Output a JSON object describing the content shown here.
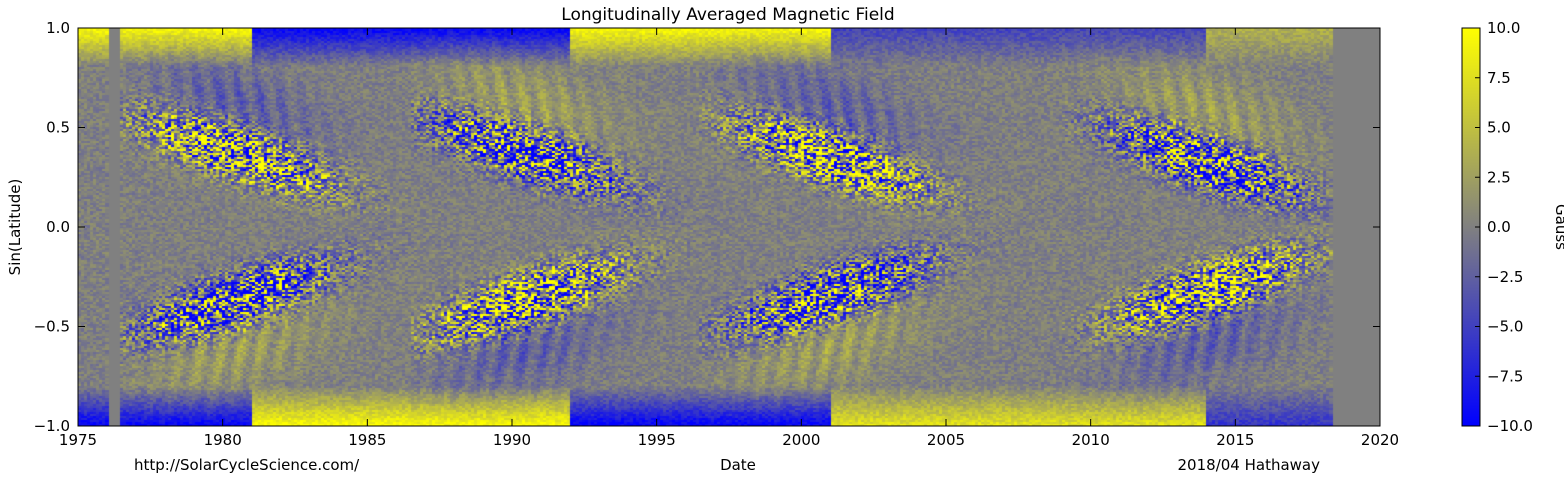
{
  "chart_data": {
    "type": "heatmap",
    "title": "Longitudinally Averaged Magnetic Field",
    "xlabel": "Date",
    "ylabel": "Sin(Latitude)",
    "xlim": [
      1975,
      2020
    ],
    "ylim": [
      -1.0,
      1.0
    ],
    "x_ticks": [
      "1975",
      "1980",
      "1985",
      "1990",
      "1995",
      "2000",
      "2005",
      "2010",
      "2015",
      "2020"
    ],
    "y_ticks": [
      "−1.0",
      "−0.5",
      "0.0",
      "0.5",
      "1.0"
    ],
    "colorbar": {
      "label": "Gauss",
      "range": [
        -10.0,
        10.0
      ],
      "ticks": [
        "−10.0",
        "−7.5",
        "−5.0",
        "−2.5",
        "0.0",
        "2.5",
        "5.0",
        "7.5",
        "10.0"
      ],
      "colormap": [
        "#0000ff",
        "#808080",
        "#ffff00"
      ]
    },
    "data_coverage_years": [
      1975.0,
      2018.3
    ],
    "data_gap_years": [
      1976.0,
      1976.5
    ],
    "solar_cycles": [
      {
        "start": 1976.5,
        "peak": 1980.5,
        "active_band_sinlat": [
          0.1,
          0.5
        ],
        "north_polarity": 1
      },
      {
        "start": 1986.5,
        "peak": 1990.5,
        "active_band_sinlat": [
          0.1,
          0.5
        ],
        "north_polarity": -1
      },
      {
        "start": 1996.5,
        "peak": 2001.0,
        "active_band_sinlat": [
          0.1,
          0.5
        ],
        "north_polarity": 1
      },
      {
        "start": 2009.0,
        "peak": 2014.0,
        "active_band_sinlat": [
          0.1,
          0.4
        ],
        "north_polarity": -1
      }
    ],
    "polar_fields": [
      {
        "from": 1975,
        "to": 1981,
        "north": 10,
        "south": -10
      },
      {
        "from": 1981,
        "to": 1992,
        "north": -10,
        "south": 10
      },
      {
        "from": 1992,
        "to": 2001,
        "north": 10,
        "south": -10
      },
      {
        "from": 2001,
        "to": 2014,
        "north": -5,
        "south": 8
      },
      {
        "from": 2014,
        "to": 2018.3,
        "north": 4,
        "south": -6
      }
    ]
  },
  "footer": {
    "left": "http://SolarCycleScience.com/",
    "right": "2018/04 Hathaway"
  }
}
